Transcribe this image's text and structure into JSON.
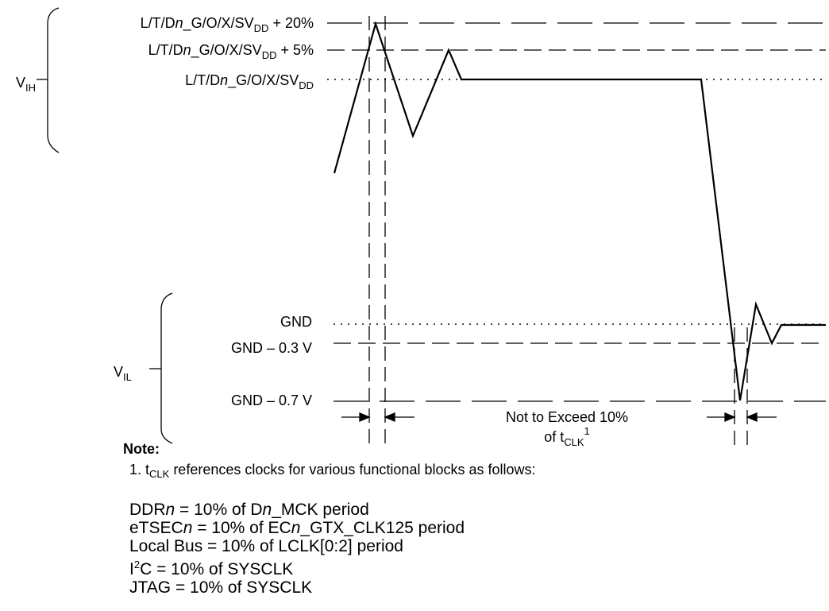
{
  "levels": {
    "vdd_plus20": {
      "base": "L/T/D",
      "italic": "n",
      "mid": "_G/O/X/SV",
      "sub": "DD",
      "tail": " + 20%"
    },
    "vdd_plus5": {
      "base": "L/T/D",
      "italic": "n",
      "mid": "_G/O/X/SV",
      "sub": "DD",
      "tail": " + 5%"
    },
    "vdd": {
      "base": "L/T/D",
      "italic": "n",
      "mid": "_G/O/X/SV",
      "sub": "DD",
      "tail": ""
    },
    "gnd": "GND",
    "gnd_minus03": "GND – 0.3 V",
    "gnd_minus07": "GND – 0.7 V"
  },
  "brackets": {
    "vih": {
      "base": "V",
      "sub": "IH"
    },
    "vil": {
      "base": "V",
      "sub": "IL"
    }
  },
  "limit_label": {
    "line1": "Not to Exceed 10%",
    "line2_base": "of t",
    "line2_sub": "CLK",
    "line2_sup": "1"
  },
  "note": {
    "heading": "Note:",
    "line_prefix": "1. t",
    "line_sub": "CLK",
    "line_rest": " references clocks for various functional blocks as follows:"
  },
  "clock_list": [
    {
      "pre": "DDR",
      "italic": "n",
      "post": " = 10% of D",
      "italic2": "n",
      "post2": "_MCK period"
    },
    {
      "pre": "eTSEC",
      "italic": "n",
      "post": " = 10% of EC",
      "italic2": "n",
      "post2": "_GTX_CLK125 period"
    },
    {
      "pre": "Local Bus = 10% of LCLK[0:2] period"
    },
    {
      "pre": "I",
      "sup": "2",
      "post": "C = 10% of SYSCLK"
    },
    {
      "pre": "JTAG = 10% of SYSCLK"
    }
  ]
}
